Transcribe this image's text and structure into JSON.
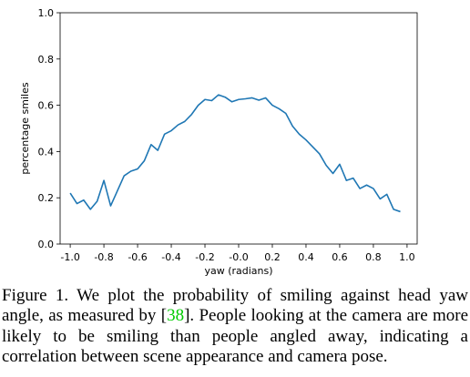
{
  "chart_data": {
    "type": "line",
    "title": "",
    "xlabel": "yaw (radians)",
    "ylabel": "percentage smiles",
    "xlim": [
      -1.06,
      1.06
    ],
    "ylim": [
      0.0,
      1.0
    ],
    "x_ticks": [
      "-1.0",
      "-0.8",
      "-0.6",
      "-0.4",
      "-0.2",
      "-0.0",
      "0.2",
      "0.4",
      "0.6",
      "0.8",
      "1.0"
    ],
    "x_tick_values": [
      -1.0,
      -0.8,
      -0.6,
      -0.4,
      -0.2,
      0.0,
      0.2,
      0.4,
      0.6,
      0.8,
      1.0
    ],
    "y_ticks": [
      "0.0",
      "0.2",
      "0.4",
      "0.6",
      "0.8",
      "1.0"
    ],
    "y_tick_values": [
      0.0,
      0.2,
      0.4,
      0.6,
      0.8,
      1.0
    ],
    "grid": false,
    "line_color": "#1f77b4",
    "series": [
      {
        "x": [
          -1.0,
          -0.96,
          -0.92,
          -0.88,
          -0.84,
          -0.8,
          -0.76,
          -0.72,
          -0.68,
          -0.64,
          -0.6,
          -0.56,
          -0.52,
          -0.48,
          -0.44,
          -0.4,
          -0.36,
          -0.32,
          -0.28,
          -0.24,
          -0.2,
          -0.16,
          -0.12,
          -0.08,
          -0.04,
          0.0,
          0.04,
          0.08,
          0.12,
          0.16,
          0.2,
          0.24,
          0.28,
          0.32,
          0.36,
          0.4,
          0.44,
          0.48,
          0.52,
          0.56,
          0.6,
          0.64,
          0.68,
          0.72,
          0.76,
          0.8,
          0.84,
          0.88,
          0.92,
          0.96
        ],
        "y": [
          0.22,
          0.175,
          0.19,
          0.15,
          0.185,
          0.275,
          0.165,
          0.23,
          0.295,
          0.315,
          0.325,
          0.36,
          0.43,
          0.405,
          0.475,
          0.49,
          0.515,
          0.53,
          0.56,
          0.6,
          0.625,
          0.62,
          0.645,
          0.635,
          0.615,
          0.625,
          0.628,
          0.632,
          0.622,
          0.632,
          0.6,
          0.585,
          0.565,
          0.51,
          0.475,
          0.45,
          0.42,
          0.39,
          0.34,
          0.305,
          0.345,
          0.275,
          0.285,
          0.24,
          0.255,
          0.24,
          0.195,
          0.215,
          0.15,
          0.14
        ]
      }
    ]
  },
  "caption": {
    "prefix": "Figure 1. We plot the probability of smiling against head yaw angle, as measured by [",
    "citation": "38",
    "suffix": "]. People looking at the camera are more likely to be smiling than people angled away, indicating a correlation between scene appearance and camera pose."
  }
}
